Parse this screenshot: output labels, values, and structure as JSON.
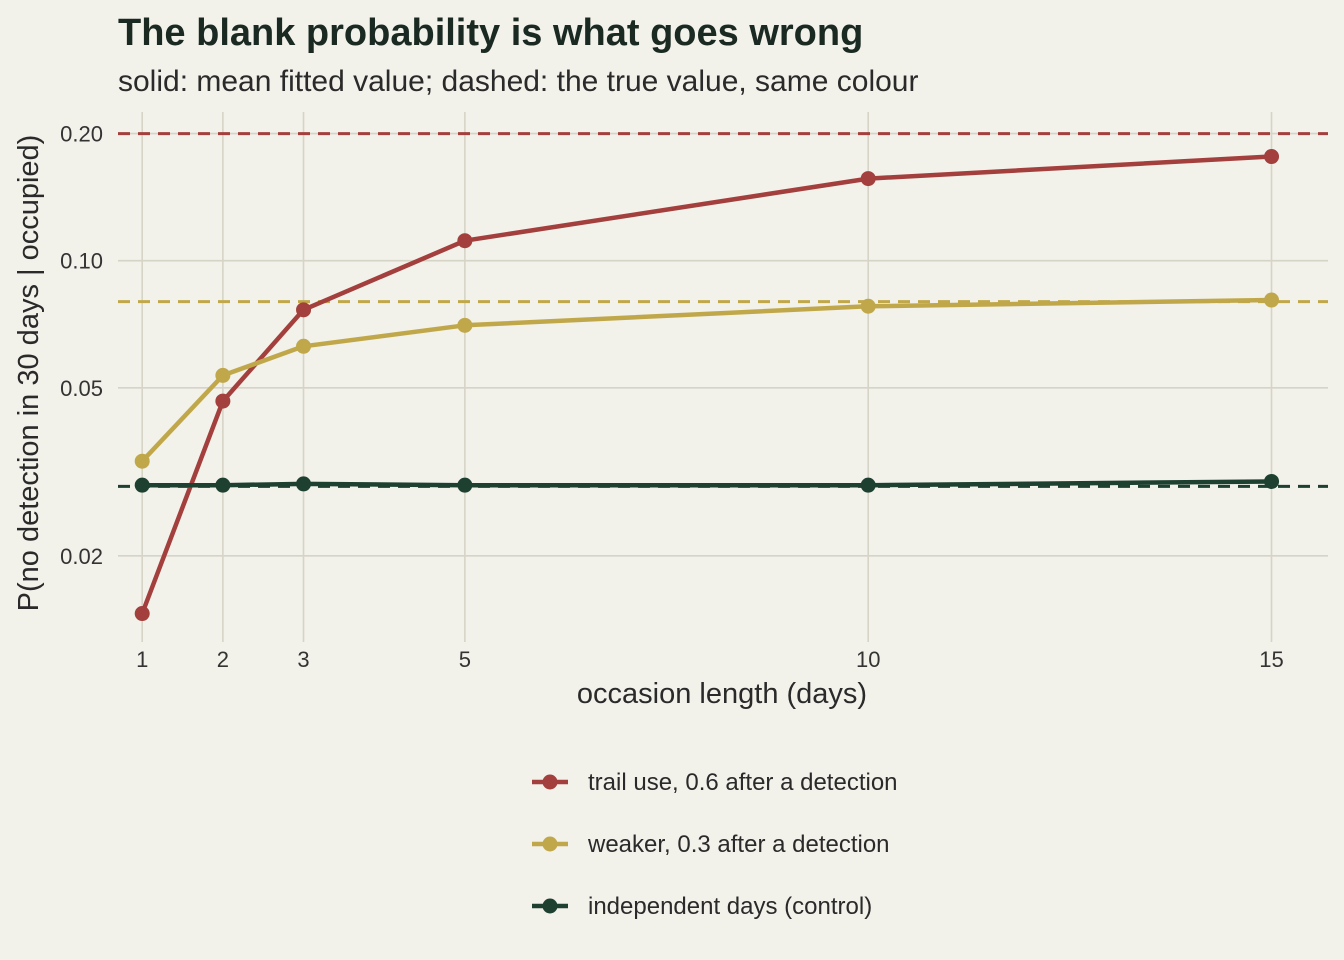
{
  "chart_data": {
    "type": "line",
    "title": "The blank probability is what goes wrong",
    "subtitle": "solid: mean fitted value; dashed: the true value, same colour",
    "xlabel": "occasion length (days)",
    "ylabel": "P(no detection in 30 days | occupied)",
    "y_scale": "log",
    "xlim": [
      0.7,
      15.7
    ],
    "ylim": [
      0.0125,
      0.225
    ],
    "x_ticks": [
      1,
      2,
      3,
      5,
      10,
      15
    ],
    "y_ticks": [
      0.02,
      0.05,
      0.1,
      0.2
    ],
    "y_tick_labels": [
      "0.02",
      "0.05",
      "0.10",
      "0.20"
    ],
    "grid": true,
    "legend_position": "bottom",
    "x": [
      1,
      2,
      3,
      5,
      10,
      15
    ],
    "series": [
      {
        "name": "trail use, 0.6 after a detection",
        "color": "#a33f3d",
        "values": [
          0.0146,
          0.0465,
          0.0765,
          0.1115,
          0.1565,
          0.1765
        ],
        "true_value": 0.2
      },
      {
        "name": "weaker, 0.3 after a detection",
        "color": "#c0a84a",
        "values": [
          0.0335,
          0.0535,
          0.0627,
          0.0703,
          0.078,
          0.0807
        ],
        "true_value": 0.08
      },
      {
        "name": "independent days (control)",
        "color": "#1e4030",
        "values": [
          0.0294,
          0.0294,
          0.0296,
          0.0294,
          0.0294,
          0.03
        ],
        "true_value": 0.0292
      }
    ]
  }
}
